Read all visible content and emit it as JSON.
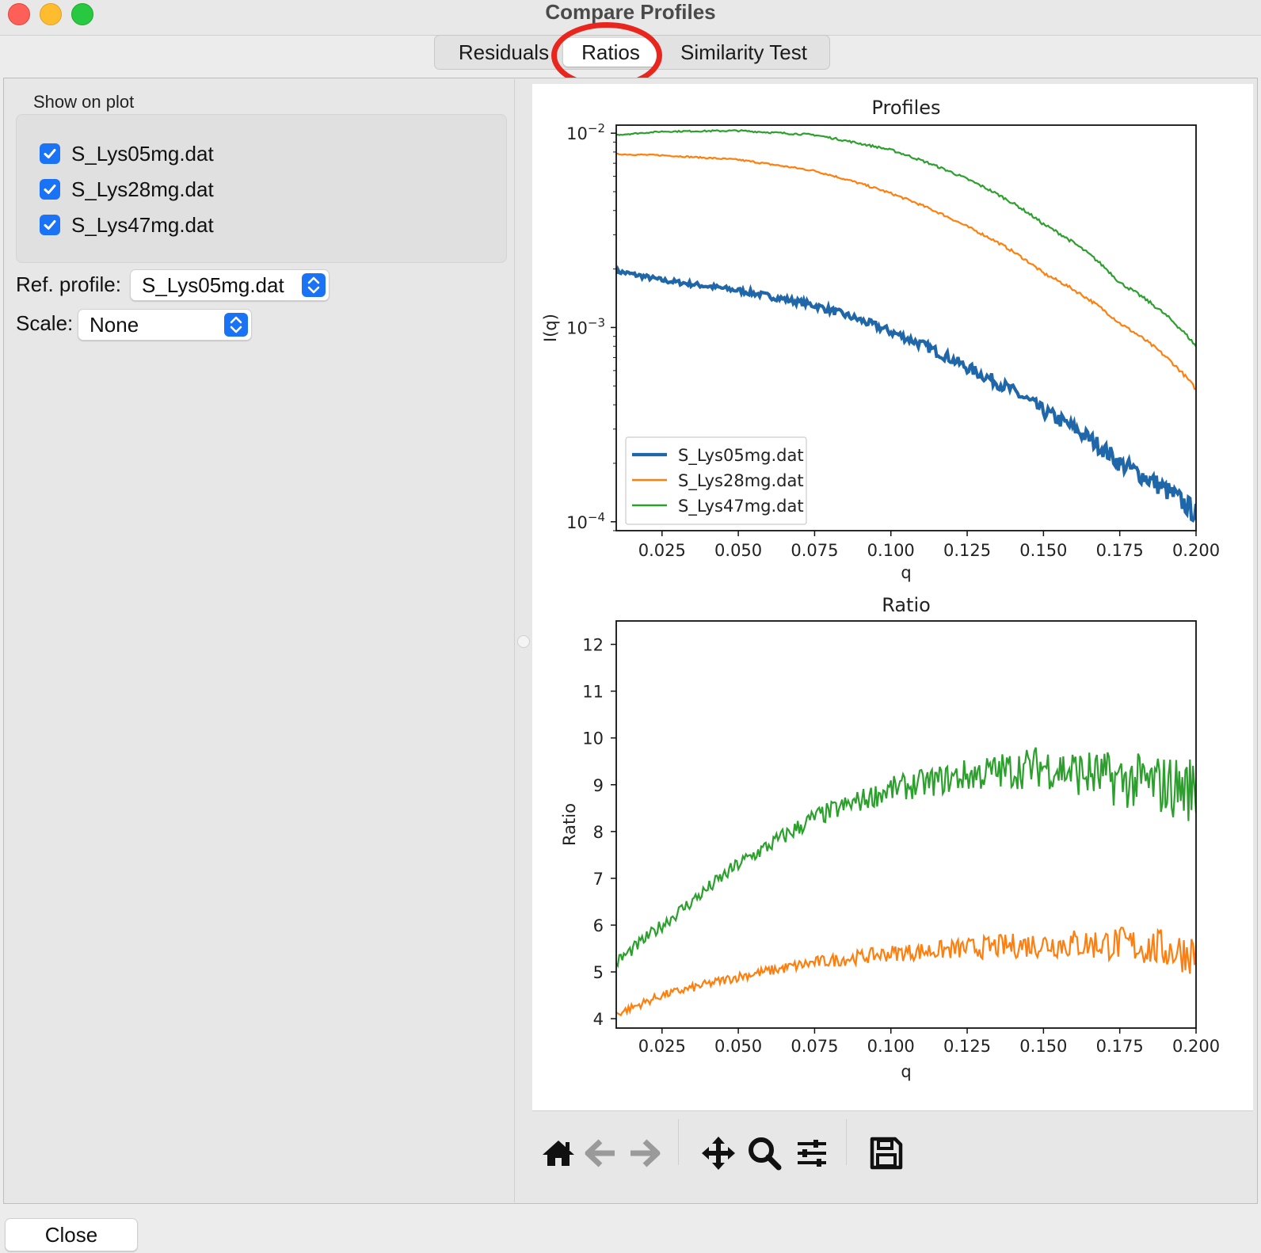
{
  "window": {
    "title": "Compare Profiles"
  },
  "tabs": [
    {
      "label": "Residuals",
      "selected": false
    },
    {
      "label": "Ratios",
      "selected": true
    },
    {
      "label": "Similarity Test",
      "selected": false
    }
  ],
  "annotation": {
    "highlight_color": "#e8261e"
  },
  "left_panel": {
    "show_on_plot_label": "Show on plot",
    "profiles": [
      {
        "label": "S_Lys05mg.dat",
        "checked": true
      },
      {
        "label": "S_Lys28mg.dat",
        "checked": true
      },
      {
        "label": "S_Lys47mg.dat",
        "checked": true
      }
    ],
    "ref_profile_label": "Ref. profile:",
    "ref_profile_value": "S_Lys05mg.dat",
    "scale_label": "Scale:",
    "scale_value": "None"
  },
  "toolbar": {
    "icons": [
      "home-icon",
      "back-arrow-icon",
      "forward-arrow-icon",
      "pan-icon",
      "zoom-icon",
      "configure-subplots-icon",
      "save-icon"
    ]
  },
  "footer": {
    "close_label": "Close"
  },
  "colors": {
    "blue": "#1f67a8",
    "orange": "#ff7f0e",
    "green": "#2ca02c",
    "accent": "#1a73f5"
  },
  "chart_data": [
    {
      "type": "line",
      "title": "Profiles",
      "xlabel": "q",
      "ylabel": "I(q)",
      "yscale": "log",
      "xlim": [
        0.01,
        0.2
      ],
      "ylim": [
        9e-05,
        0.011
      ],
      "xticks": [
        "0.025",
        "0.050",
        "0.075",
        "0.100",
        "0.125",
        "0.150",
        "0.175",
        "0.200"
      ],
      "yticks": [
        {
          "base": "10",
          "exp": "−2",
          "value": 0.01
        },
        {
          "base": "10",
          "exp": "−3",
          "value": 0.001
        },
        {
          "base": "10",
          "exp": "−4",
          "value": 0.0001
        }
      ],
      "legend": "lower-left",
      "x": [
        0.01,
        0.025,
        0.05,
        0.075,
        0.1,
        0.125,
        0.15,
        0.175,
        0.2
      ],
      "series": [
        {
          "name": "S_Lys05mg.dat",
          "color": "#1f67a8",
          "values": [
            0.00195,
            0.00175,
            0.00155,
            0.0013,
            0.00095,
            0.00062,
            0.00037,
            0.0002,
            0.00011
          ]
        },
        {
          "name": "S_Lys28mg.dat",
          "color": "#ff7f0e",
          "values": [
            0.0078,
            0.0077,
            0.0073,
            0.0064,
            0.0049,
            0.0033,
            0.0019,
            0.00105,
            0.00048
          ]
        },
        {
          "name": "S_Lys47mg.dat",
          "color": "#2ca02c",
          "values": [
            0.0098,
            0.0102,
            0.0103,
            0.0098,
            0.0082,
            0.0058,
            0.0034,
            0.0017,
            0.0008
          ]
        }
      ]
    },
    {
      "type": "line",
      "title": "Ratio",
      "xlabel": "q",
      "ylabel": "Ratio",
      "xlim": [
        0.01,
        0.2
      ],
      "ylim": [
        3.8,
        12.5
      ],
      "xticks": [
        "0.025",
        "0.050",
        "0.075",
        "0.100",
        "0.125",
        "0.150",
        "0.175",
        "0.200"
      ],
      "yticks": [
        "4",
        "5",
        "6",
        "7",
        "8",
        "9",
        "10",
        "11",
        "12"
      ],
      "x": [
        0.01,
        0.025,
        0.05,
        0.075,
        0.1,
        0.125,
        0.15,
        0.175,
        0.2
      ],
      "series": [
        {
          "color": "#ff7f0e",
          "values": [
            4.1,
            4.5,
            4.9,
            5.2,
            5.4,
            5.5,
            5.6,
            5.6,
            5.4
          ]
        },
        {
          "color": "#2ca02c",
          "values": [
            5.2,
            6.0,
            7.3,
            8.3,
            8.9,
            9.2,
            9.4,
            9.1,
            8.9
          ]
        }
      ]
    }
  ]
}
